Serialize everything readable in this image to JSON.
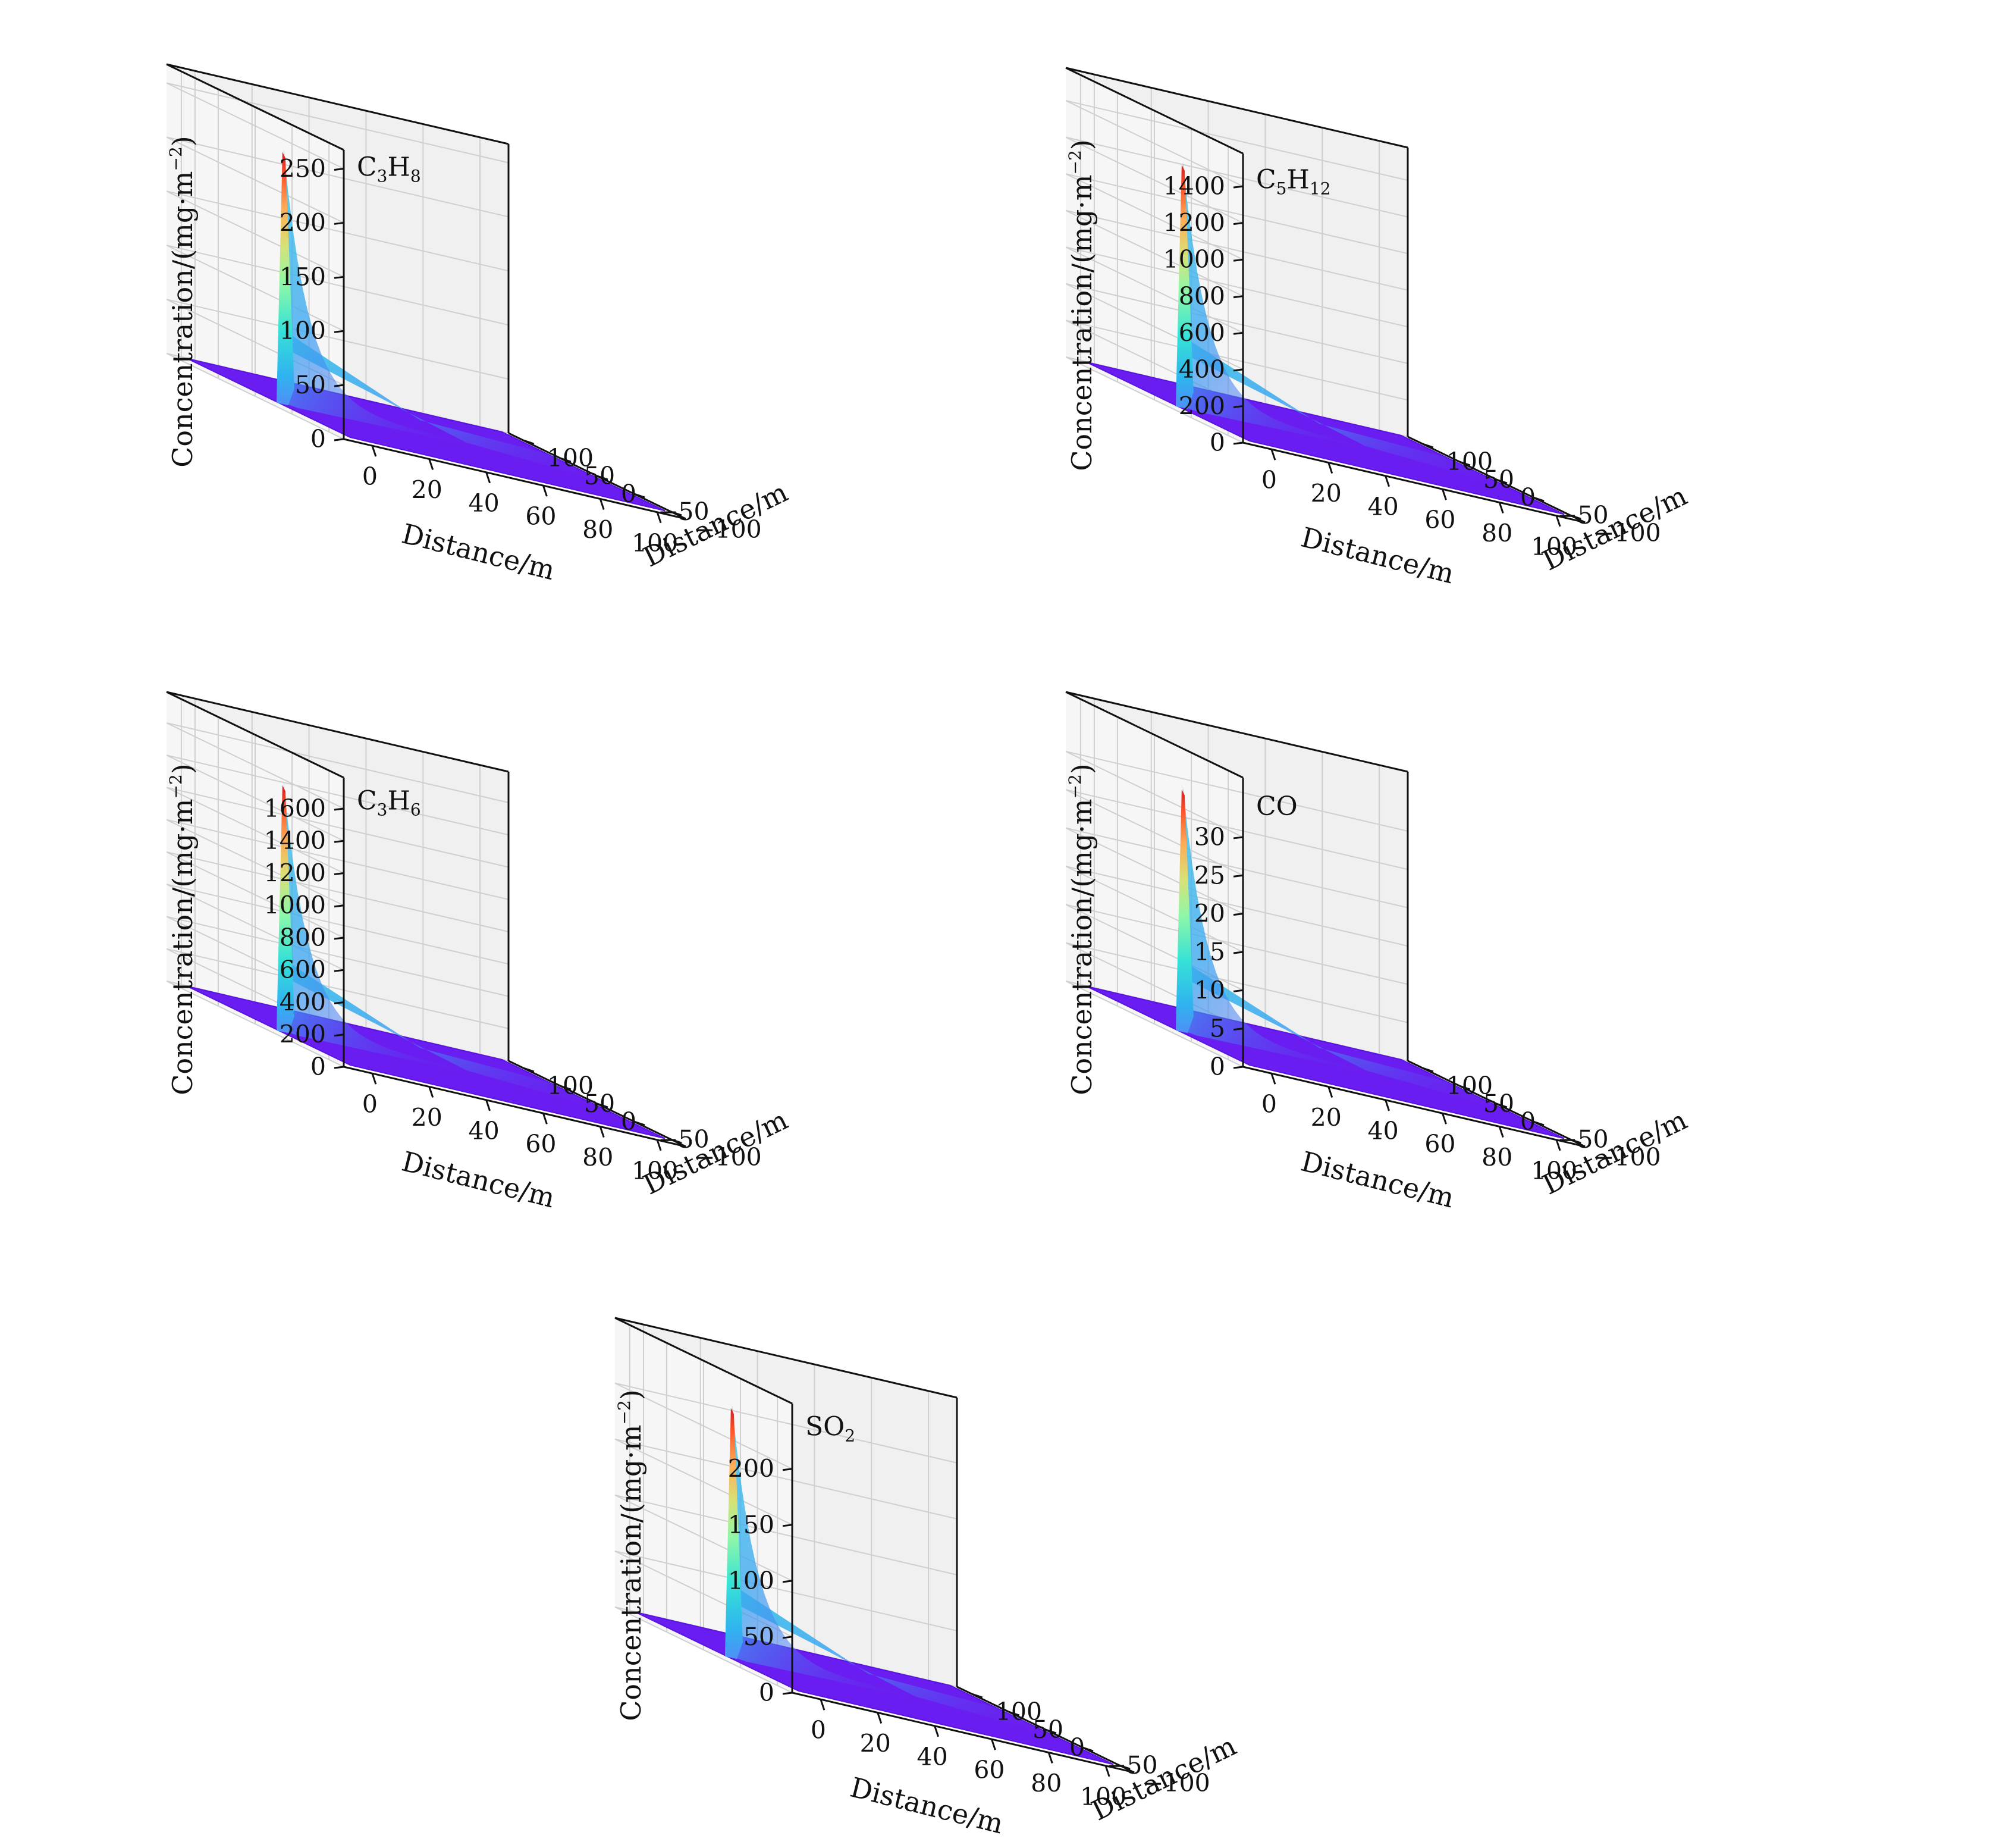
{
  "figure": {
    "shared": {
      "xlabel": "Distance/m",
      "ylabel": "Distance/m",
      "zlabel": "Concentration/(mg·m",
      "zlabel_sup": "−2",
      "zlabel_close": ")",
      "colormap": "rainbow",
      "base_color": "#6a1df0"
    }
  },
  "chart_data": [
    {
      "type": "surface",
      "label": {
        "main": "C",
        "s1": "3",
        "mid": "H",
        "s2": "8"
      },
      "x_ticks": [
        0,
        20,
        40,
        60,
        80,
        100
      ],
      "y_ticks": [
        -100,
        -50,
        0,
        50,
        100
      ],
      "xlim": [
        -10,
        110
      ],
      "ylim": [
        -120,
        120
      ],
      "z_ticks": [
        0,
        50,
        100,
        150,
        200,
        250
      ],
      "zlim": [
        0,
        262
      ],
      "peak_value": 232,
      "peak_location": {
        "x": 0,
        "y": 0
      }
    },
    {
      "type": "surface",
      "label": {
        "main": "C",
        "s1": "5",
        "mid": "H",
        "s2": "12"
      },
      "x_ticks": [
        0,
        20,
        40,
        60,
        80,
        100
      ],
      "y_ticks": [
        -100,
        -50,
        0,
        50,
        100
      ],
      "xlim": [
        -10,
        110
      ],
      "ylim": [
        -120,
        120
      ],
      "z_ticks": [
        0,
        200,
        400,
        600,
        800,
        1000,
        1200,
        1400
      ],
      "zlim": [
        0,
        1500
      ],
      "peak_value": 1320,
      "peak_location": {
        "x": 0,
        "y": 0
      }
    },
    {
      "type": "surface",
      "label": {
        "main": "C",
        "s1": "3",
        "mid": "H",
        "s2": "6"
      },
      "x_ticks": [
        0,
        20,
        40,
        60,
        80,
        100
      ],
      "y_ticks": [
        -100,
        -50,
        0,
        50,
        100
      ],
      "xlim": [
        -10,
        110
      ],
      "ylim": [
        -120,
        120
      ],
      "z_ticks": [
        0,
        200,
        400,
        600,
        800,
        1000,
        1200,
        1400,
        1600
      ],
      "zlim": [
        0,
        1720
      ],
      "peak_value": 1520,
      "peak_location": {
        "x": 0,
        "y": 0
      }
    },
    {
      "type": "surface",
      "label": {
        "main": "CO",
        "s1": "",
        "mid": "",
        "s2": ""
      },
      "x_ticks": [
        0,
        20,
        40,
        60,
        80,
        100
      ],
      "y_ticks": [
        -100,
        -50,
        0,
        50,
        100
      ],
      "xlim": [
        -10,
        110
      ],
      "ylim": [
        -120,
        120
      ],
      "z_ticks": [
        0,
        5,
        10,
        15,
        20,
        25,
        30
      ],
      "zlim": [
        0,
        35.5
      ],
      "peak_value": 31.5,
      "peak_location": {
        "x": 0,
        "y": 0
      }
    },
    {
      "type": "surface",
      "label": {
        "main": "SO",
        "s1": "2",
        "mid": "",
        "s2": ""
      },
      "x_ticks": [
        0,
        20,
        40,
        60,
        80,
        100
      ],
      "y_ticks": [
        -100,
        -50,
        0,
        50,
        100
      ],
      "xlim": [
        -10,
        110
      ],
      "ylim": [
        -120,
        120
      ],
      "z_ticks": [
        0,
        50,
        100,
        150,
        200
      ],
      "zlim": [
        0,
        248
      ],
      "peak_value": 222,
      "peak_location": {
        "x": 0,
        "y": 0
      }
    }
  ]
}
